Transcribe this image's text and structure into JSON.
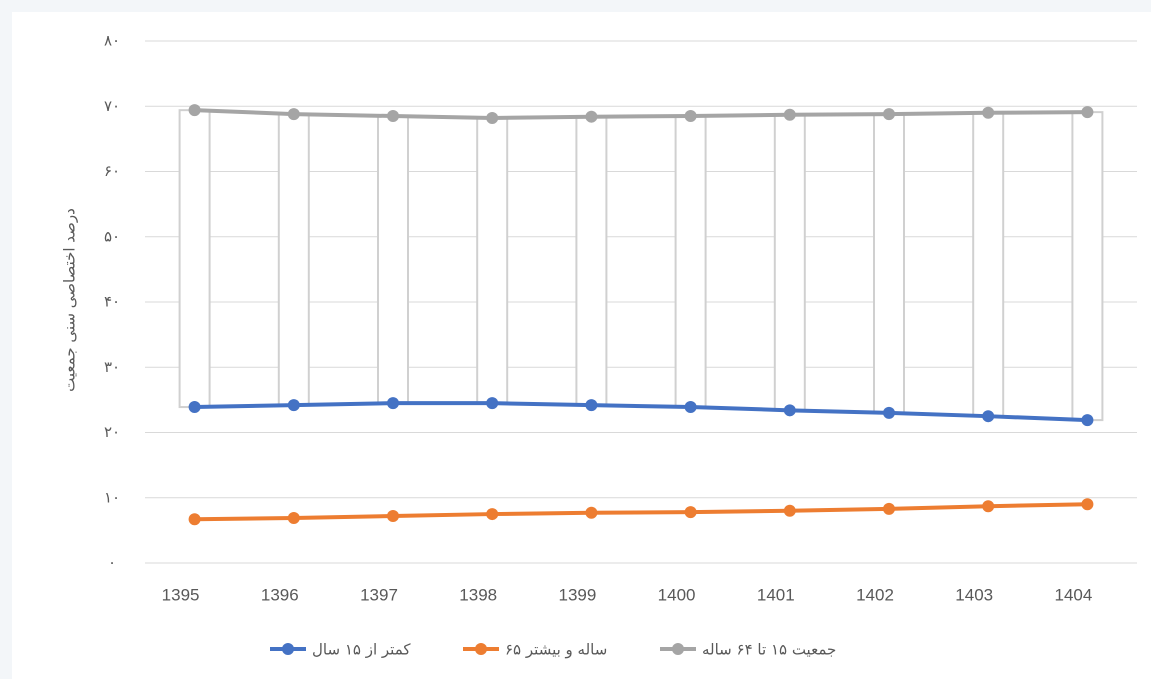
{
  "chart_data": {
    "type": "line",
    "y_label": "درصد اختصاصی سنی جمعیت",
    "categories": [
      "1395",
      "1396",
      "1397",
      "1398",
      "1399",
      "1400",
      "1401",
      "1402",
      "1403",
      "1404"
    ],
    "series": [
      {
        "name": "کمتر از ۱۵ سال",
        "color": "#4472c4",
        "values": [
          23.9,
          24.2,
          24.5,
          24.5,
          24.2,
          23.9,
          23.4,
          23.0,
          22.5,
          21.9
        ]
      },
      {
        "name": "۶۵ ساله و بیشتر",
        "color": "#ed7d31",
        "values": [
          6.7,
          6.9,
          7.2,
          7.5,
          7.7,
          7.8,
          8.0,
          8.3,
          8.7,
          9.0
        ]
      },
      {
        "name": "جمعیت ۱۵ تا ۶۴ ساله",
        "color": "#a5a5a5",
        "values": [
          69.4,
          68.8,
          68.5,
          68.2,
          68.4,
          68.5,
          68.7,
          68.8,
          69.0,
          69.1
        ]
      }
    ],
    "high_low_bars": true,
    "ylim": [
      0,
      80
    ],
    "yticks": [
      {
        "value": 0,
        "label": "۰"
      },
      {
        "value": 10,
        "label": "۱۰"
      },
      {
        "value": 20,
        "label": "۲۰"
      },
      {
        "value": 30,
        "label": "۳۰"
      },
      {
        "value": 40,
        "label": "۴۰"
      },
      {
        "value": 50,
        "label": "۵۰"
      },
      {
        "value": 60,
        "label": "۶۰"
      },
      {
        "value": 70,
        "label": "۷۰"
      },
      {
        "value": 80,
        "label": "۸۰"
      }
    ],
    "grid": true
  }
}
